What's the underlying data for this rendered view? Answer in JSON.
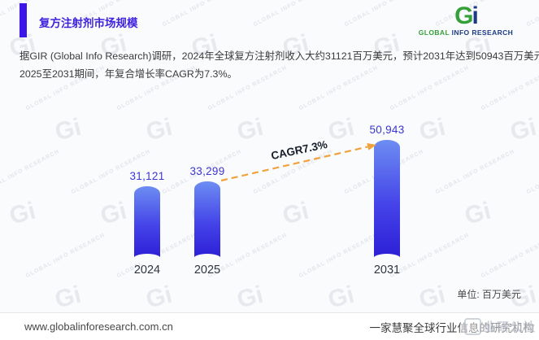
{
  "header": {
    "title": "复方注射剂市场规模",
    "logo": {
      "mark_g": "G",
      "mark_i": "i",
      "word_green": "GLOBAL",
      "word_navy": "INFO RESEARCH"
    }
  },
  "intro": {
    "line1": "据GIR (Global Info Research)调研，2024年全球复方注射剂收入大约31121百万美元，预计2031年达到50943百万美元，",
    "line2": "2025至2031期间，年复合增长率CAGR为7.3%。"
  },
  "chart_data": {
    "type": "bar",
    "title": "复方注射剂市场规模",
    "categories": [
      "2024",
      "2025",
      "2031"
    ],
    "values": [
      31121,
      33299,
      50943
    ],
    "value_labels": [
      "31,121",
      "33,299",
      "50,943"
    ],
    "annotation": "CAGR7.3%",
    "unit_label": "单位: 百万美元",
    "ylim": [
      0,
      50943
    ],
    "grid": false,
    "legend": "none",
    "bar_gradient_top": "#6d8df2",
    "bar_gradient_bottom": "#2c1ed6",
    "value_label_color": "#3b35d1",
    "arrow_color": "#f0a23c"
  },
  "footer": {
    "url": "www.globalinforesearch.com.cn",
    "slogan": "一家慧聚全球行业信息的研究机构",
    "corner_watermark": "韭研公社"
  },
  "watermarks": {
    "tile_text": "GLOBAL INFO RESEARCH",
    "tile_mark": "Gi"
  },
  "colors": {
    "accent": "#3c16e8",
    "logo_green": "#35a038",
    "logo_navy": "#1d3a85"
  }
}
